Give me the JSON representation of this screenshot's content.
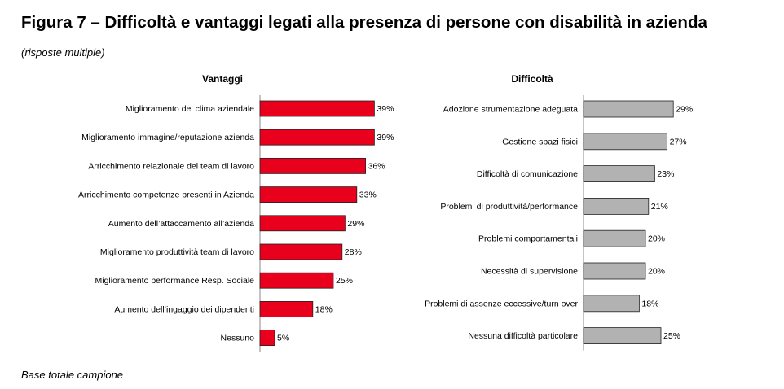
{
  "figure": {
    "title": "Figura 7 – Difficoltà e vantaggi legati alla presenza di persone con disabilità in azienda",
    "subtitle": "(risposte multiple)",
    "footer": "Base totale campione"
  },
  "chart_data": [
    {
      "type": "bar",
      "orientation": "horizontal",
      "title": "Vantaggi",
      "color": "#E8001C",
      "value_suffix": "%",
      "xlim": [
        0,
        100
      ],
      "categories": [
        "Miglioramento del clima aziendale",
        "Miglioramento immagine/reputazione azienda",
        "Arricchimento relazionale del team di lavoro",
        "Arricchimento competenze presenti in Azienda",
        "Aumento dell’attaccamento all’azienda",
        "Miglioramento produttività team di lavoro",
        "Miglioramento performance Resp. Sociale",
        "Aumento dell’ingaggio dei dipendenti",
        "Nessuno"
      ],
      "values": [
        39,
        39,
        36,
        33,
        29,
        28,
        25,
        18,
        5
      ]
    },
    {
      "type": "bar",
      "orientation": "horizontal",
      "title": "Difficoltà",
      "color": "#B2B2B2",
      "value_suffix": "%",
      "xlim": [
        0,
        100
      ],
      "categories": [
        "Adozione strumentazione adeguata",
        "Gestione spazi fisici",
        "Difficoltà di comunicazione",
        "Problemi di produttività/performance",
        "Problemi comportamentali",
        "Necessità di supervisione",
        "Problemi di assenze eccessive/turn over",
        "Nessuna difficoltà particolare"
      ],
      "values": [
        29,
        27,
        23,
        21,
        20,
        20,
        18,
        25
      ]
    }
  ]
}
